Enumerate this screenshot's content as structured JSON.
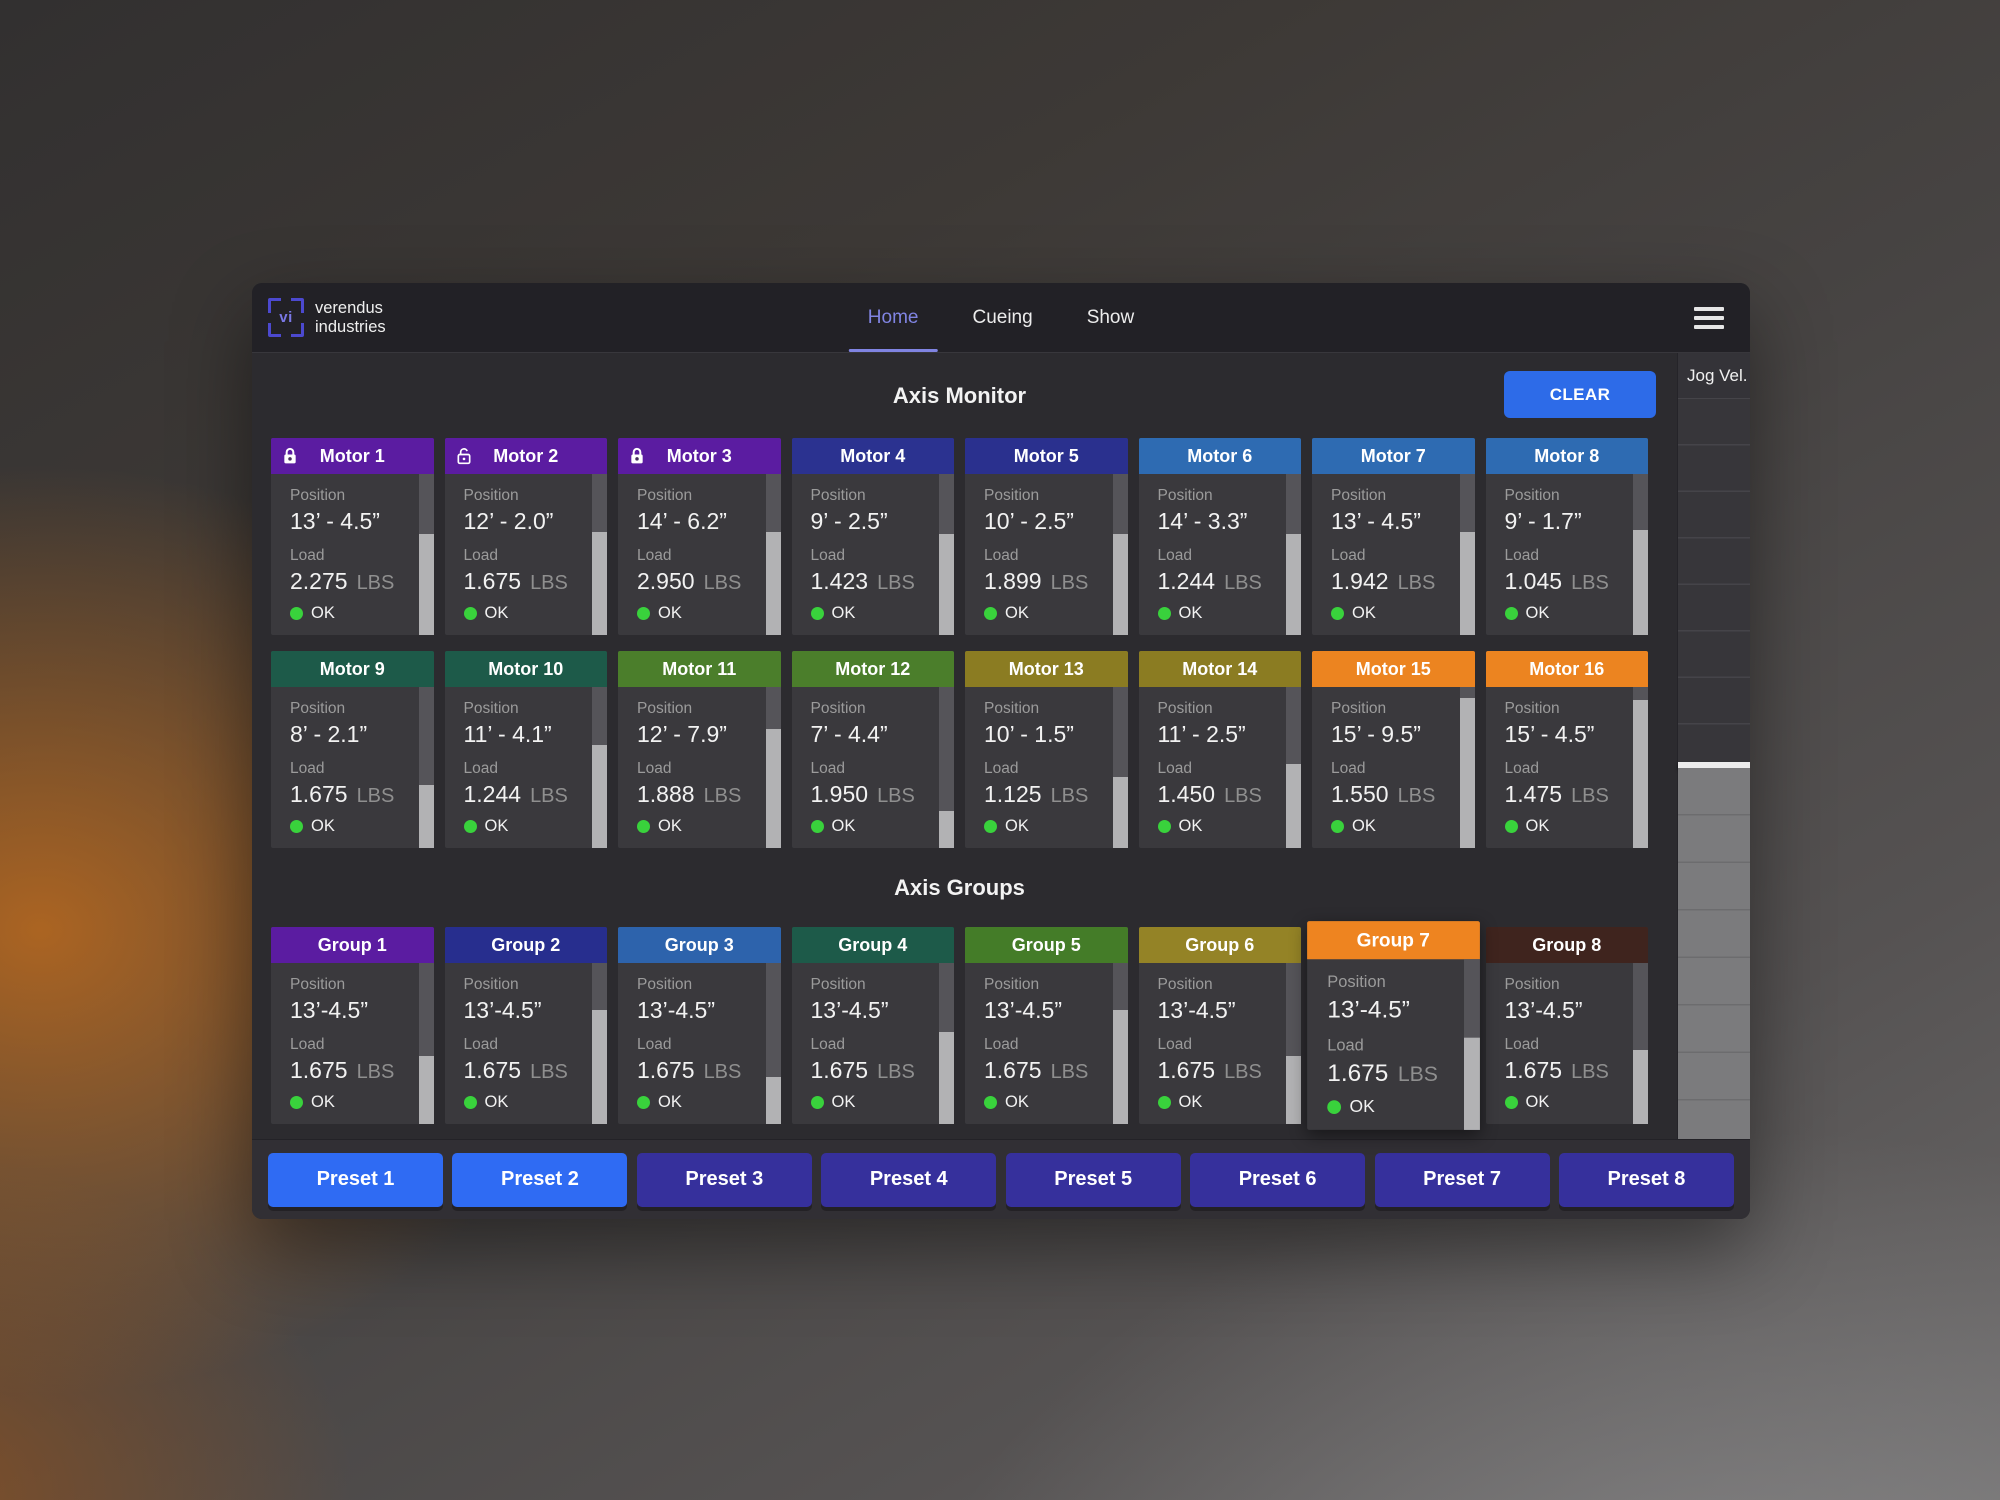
{
  "brand": {
    "logo_text": "vi",
    "line1": "verendus",
    "line2": "industries"
  },
  "nav": {
    "items": [
      {
        "label": "Home",
        "active": true
      },
      {
        "label": "Cueing",
        "active": false
      },
      {
        "label": "Show",
        "active": false
      }
    ]
  },
  "axis_monitor": {
    "title": "Axis Monitor",
    "clear_label": "CLEAR"
  },
  "groups_section": {
    "title": "Axis Groups"
  },
  "jog_panel": {
    "label": "Jog Vel.",
    "handle_position_pct": 49
  },
  "card_labels": {
    "position": "Position",
    "load": "Load"
  },
  "motors": [
    {
      "name": "Motor 1",
      "color": "#5b1ca1",
      "lock": "closed",
      "position": "13’ - 4.5”",
      "load": "2.275",
      "load_unit": "LBS",
      "status": "OK",
      "level_pct": 63
    },
    {
      "name": "Motor 2",
      "color": "#5b1ca1",
      "lock": "open",
      "position": "12’ - 2.0”",
      "load": "1.675",
      "load_unit": "LBS",
      "status": "OK",
      "level_pct": 64
    },
    {
      "name": "Motor 3",
      "color": "#5b1ca1",
      "lock": "closed",
      "position": "14’ - 6.2”",
      "load": "2.950",
      "load_unit": "LBS",
      "status": "OK",
      "level_pct": 64
    },
    {
      "name": "Motor 4",
      "color": "#2b3290",
      "lock": null,
      "position": "9’ - 2.5”",
      "load": "1.423",
      "load_unit": "LBS",
      "status": "OK",
      "level_pct": 63
    },
    {
      "name": "Motor 5",
      "color": "#2a308e",
      "lock": null,
      "position": "10’ - 2.5”",
      "load": "1.899",
      "load_unit": "LBS",
      "status": "OK",
      "level_pct": 63
    },
    {
      "name": "Motor 6",
      "color": "#2e6bb2",
      "lock": null,
      "position": "14’ - 3.3”",
      "load": "1.244",
      "load_unit": "LBS",
      "status": "OK",
      "level_pct": 63
    },
    {
      "name": "Motor 7",
      "color": "#2e6bb2",
      "lock": null,
      "position": "13’ - 4.5”",
      "load": "1.942",
      "load_unit": "LBS",
      "status": "OK",
      "level_pct": 64
    },
    {
      "name": "Motor 8",
      "color": "#2e6bb2",
      "lock": null,
      "position": "9’ - 1.7”",
      "load": "1.045",
      "load_unit": "LBS",
      "status": "OK",
      "level_pct": 65
    },
    {
      "name": "Motor 9",
      "color": "#1d5a49",
      "lock": null,
      "position": "8’ - 2.1”",
      "load": "1.675",
      "load_unit": "LBS",
      "status": "OK",
      "level_pct": 39
    },
    {
      "name": "Motor 10",
      "color": "#1d5a49",
      "lock": null,
      "position": "11’ - 4.1”",
      "load": "1.244",
      "load_unit": "LBS",
      "status": "OK",
      "level_pct": 64
    },
    {
      "name": "Motor 11",
      "color": "#4b7e2b",
      "lock": null,
      "position": "12’ - 7.9”",
      "load": "1.888",
      "load_unit": "LBS",
      "status": "OK",
      "level_pct": 74
    },
    {
      "name": "Motor 12",
      "color": "#4b7e2b",
      "lock": null,
      "position": "7’ - 4.4”",
      "load": "1.950",
      "load_unit": "LBS",
      "status": "OK",
      "level_pct": 23
    },
    {
      "name": "Motor 13",
      "color": "#8b7c22",
      "lock": null,
      "position": "10’ - 1.5”",
      "load": "1.125",
      "load_unit": "LBS",
      "status": "OK",
      "level_pct": 44
    },
    {
      "name": "Motor 14",
      "color": "#8b7c22",
      "lock": null,
      "position": "11’ - 2.5”",
      "load": "1.450",
      "load_unit": "LBS",
      "status": "OK",
      "level_pct": 52
    },
    {
      "name": "Motor 15",
      "color": "#ec8420",
      "lock": null,
      "position": "15’ - 9.5”",
      "load": "1.550",
      "load_unit": "LBS",
      "status": "OK",
      "level_pct": 93
    },
    {
      "name": "Motor 16",
      "color": "#ec8420",
      "lock": null,
      "position": "15’ - 4.5”",
      "load": "1.475",
      "load_unit": "LBS",
      "status": "OK",
      "level_pct": 92
    }
  ],
  "groups": [
    {
      "name": "Group 1",
      "color": "#5b1ca1",
      "position": "13’-4.5”",
      "load": "1.675",
      "load_unit": "LBS",
      "status": "OK",
      "level_pct": 42,
      "emphasized": false
    },
    {
      "name": "Group 2",
      "color": "#272e8e",
      "position": "13’-4.5”",
      "load": "1.675",
      "load_unit": "LBS",
      "status": "OK",
      "level_pct": 71,
      "emphasized": false
    },
    {
      "name": "Group 3",
      "color": "#2d63ac",
      "position": "13’-4.5”",
      "load": "1.675",
      "load_unit": "LBS",
      "status": "OK",
      "level_pct": 29,
      "emphasized": false
    },
    {
      "name": "Group 4",
      "color": "#1d5a49",
      "position": "13’-4.5”",
      "load": "1.675",
      "load_unit": "LBS",
      "status": "OK",
      "level_pct": 57,
      "emphasized": false
    },
    {
      "name": "Group 5",
      "color": "#447c28",
      "position": "13’-4.5”",
      "load": "1.675",
      "load_unit": "LBS",
      "status": "OK",
      "level_pct": 71,
      "emphasized": false
    },
    {
      "name": "Group 6",
      "color": "#948326",
      "position": "13’-4.5”",
      "load": "1.675",
      "load_unit": "LBS",
      "status": "OK",
      "level_pct": 42,
      "emphasized": false
    },
    {
      "name": "Group 7",
      "color": "#ee8420",
      "position": "13’-4.5”",
      "load": "1.675",
      "load_unit": "LBS",
      "status": "OK",
      "level_pct": 54,
      "emphasized": true
    },
    {
      "name": "Group 8",
      "color": "#3f241e",
      "position": "13’-4.5”",
      "load": "1.675",
      "load_unit": "LBS",
      "status": "OK",
      "level_pct": 46,
      "emphasized": false
    }
  ],
  "presets": [
    {
      "label": "Preset 1",
      "style": "primary"
    },
    {
      "label": "Preset 2",
      "style": "primary"
    },
    {
      "label": "Preset 3",
      "style": "secondary"
    },
    {
      "label": "Preset 4",
      "style": "secondary"
    },
    {
      "label": "Preset 5",
      "style": "secondary"
    },
    {
      "label": "Preset 6",
      "style": "secondary"
    },
    {
      "label": "Preset 7",
      "style": "secondary"
    },
    {
      "label": "Preset 8",
      "style": "secondary"
    }
  ],
  "colors": {
    "primary_blue": "#2f6bf3",
    "secondary_indigo": "#36309c",
    "clear_blue": "#2d6be8",
    "active_tab": "#8084e2",
    "status_ok": "#39d23c",
    "level_fill": "#b2b2b4",
    "level_track": "#555459"
  }
}
